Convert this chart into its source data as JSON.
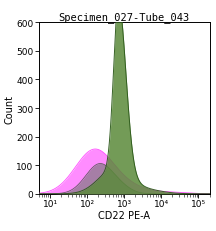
{
  "title": "Specimen_027-Tube_043",
  "xlabel": "CD22 PE-A",
  "ylabel": "Count",
  "xlim_log": [
    5,
    200000
  ],
  "ylim": [
    0,
    600
  ],
  "yticks": [
    0,
    100,
    200,
    300,
    400,
    500,
    600
  ],
  "xticks": [
    10,
    100,
    1000,
    10000,
    100000
  ],
  "xticklabels": [
    "10¹",
    "10²",
    "10³",
    "10⁴",
    "10⁵"
  ],
  "background_color": "#ffffff",
  "plot_bg_color": "#ffffff",
  "border_color": "#000000",
  "pink_color": "#ff44ff",
  "pink_fill": "#ff66ff",
  "green_dark_color": "#2d5a1b",
  "green_fill_color": "#5a8a3a",
  "gray_color": "#555555",
  "gray_fill": "#777777",
  "olive_color": "#6b6b00",
  "title_fontsize": 7.5,
  "label_fontsize": 7,
  "tick_fontsize": 6.5
}
